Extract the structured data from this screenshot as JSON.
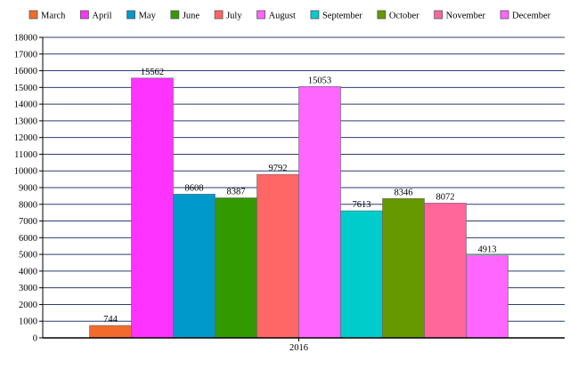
{
  "chart_data": {
    "type": "bar",
    "categories": [
      "2016"
    ],
    "series": [
      {
        "name": "March",
        "values": [
          744
        ],
        "color": "#f26b2d"
      },
      {
        "name": "April",
        "values": [
          15562
        ],
        "color": "#ff33ff"
      },
      {
        "name": "May",
        "values": [
          8608
        ],
        "color": "#0099cc"
      },
      {
        "name": "June",
        "values": [
          8387
        ],
        "color": "#339900"
      },
      {
        "name": "July",
        "values": [
          9792
        ],
        "color": "#ff6666"
      },
      {
        "name": "August",
        "values": [
          15053
        ],
        "color": "#ff66ff"
      },
      {
        "name": "September",
        "values": [
          7613
        ],
        "color": "#00cccc"
      },
      {
        "name": "October",
        "values": [
          8346
        ],
        "color": "#669900"
      },
      {
        "name": "November",
        "values": [
          8072
        ],
        "color": "#ff6699"
      },
      {
        "name": "December",
        "values": [
          4913
        ],
        "color": "#ff66ff"
      }
    ],
    "ylim": [
      0,
      18000
    ],
    "yticks": [
      0,
      1000,
      2000,
      3000,
      4000,
      5000,
      6000,
      7000,
      8000,
      9000,
      10000,
      11000,
      12000,
      13000,
      14000,
      15000,
      16000,
      17000,
      18000
    ],
    "grid": true,
    "legend": "top",
    "data_labels": true,
    "xlabel": "",
    "ylabel": "",
    "title": ""
  }
}
